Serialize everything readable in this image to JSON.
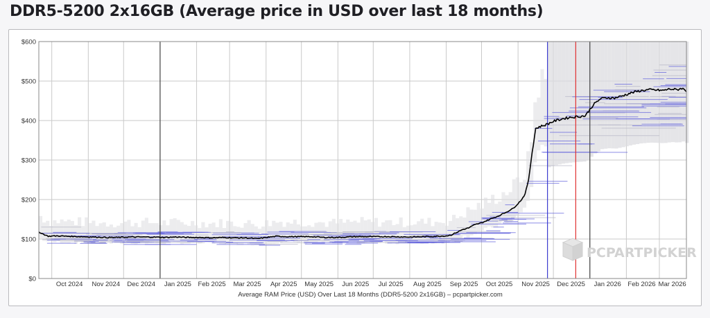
{
  "page": {
    "title": "DDR5-5200 2x16GB (Average price in USD over last 18 months)"
  },
  "watermark": {
    "text": "PCPARTPICKER",
    "icon": "pcpartpicker-box-logo"
  },
  "colors": {
    "line": "#000000",
    "band": "#dcdce0",
    "listing": "#6666dd",
    "vline_blue": "#3b3bd0",
    "vline_red": "#e03030",
    "vline_dark": "#444444",
    "grid": "#c9c9c9"
  },
  "chart_data": {
    "type": "line",
    "title": "DDR5-5200 2x16GB (Average price in USD over last 18 months)",
    "xlabel": "Average RAM Price (USD) Over Last 18 Months (DDR5-5200 2x16GB) – pcpartpicker.com",
    "ylabel": "",
    "grid": true,
    "legend": "none",
    "ylim": [
      0,
      600
    ],
    "yticks": [
      0,
      100,
      200,
      300,
      400,
      500,
      600
    ],
    "ytick_labels": [
      "$0",
      "$100",
      "$200",
      "$300",
      "$400",
      "$500",
      "$600"
    ],
    "xlim": [
      "2024-09-20",
      "2026-03-24"
    ],
    "x_month_lines": [
      "2024-10-01",
      "2024-11-01",
      "2024-12-01",
      "2025-01-01",
      "2025-02-01",
      "2025-03-01",
      "2025-04-01",
      "2025-05-01",
      "2025-06-01",
      "2025-07-01",
      "2025-08-01",
      "2025-09-01",
      "2025-10-01",
      "2025-11-01",
      "2025-12-01",
      "2026-01-01",
      "2026-02-01",
      "2026-03-01"
    ],
    "xticks": [
      {
        "x": "2024-10-16",
        "label": "Oct 2024"
      },
      {
        "x": "2024-11-16",
        "label": "Nov 2024"
      },
      {
        "x": "2024-12-16",
        "label": "Dec 2024"
      },
      {
        "x": "2025-01-16",
        "label": "Jan 2025"
      },
      {
        "x": "2025-02-14",
        "label": "Feb 2025"
      },
      {
        "x": "2025-03-16",
        "label": "Mar 2025"
      },
      {
        "x": "2025-04-16",
        "label": "Apr 2025"
      },
      {
        "x": "2025-05-16",
        "label": "May 2025"
      },
      {
        "x": "2025-06-16",
        "label": "Jun 2025"
      },
      {
        "x": "2025-07-16",
        "label": "Jul 2025"
      },
      {
        "x": "2025-08-16",
        "label": "Aug 2025"
      },
      {
        "x": "2025-09-16",
        "label": "Sep 2025"
      },
      {
        "x": "2025-10-16",
        "label": "Oct 2025"
      },
      {
        "x": "2025-11-16",
        "label": "Nov 2025"
      },
      {
        "x": "2025-12-16",
        "label": "Dec 2025"
      },
      {
        "x": "2026-01-16",
        "label": "Jan 2026"
      },
      {
        "x": "2026-02-14",
        "label": "Feb 2026"
      },
      {
        "x": "2026-03-12",
        "label": "Mar 2026"
      }
    ],
    "vertical_markers": [
      {
        "x": "2025-01-01",
        "color": "#444444"
      },
      {
        "x": "2025-11-26",
        "color": "#3b3bd0"
      },
      {
        "x": "2025-12-20",
        "color": "#e03030"
      },
      {
        "x": "2026-01-01",
        "color": "#444444"
      }
    ],
    "series": [
      {
        "x": [
          "2024-09-20",
          "2024-09-24",
          "2024-09-28",
          "2024-10-05",
          "2024-10-15",
          "2024-10-25",
          "2024-11-05",
          "2024-11-15",
          "2024-11-25",
          "2024-12-05",
          "2024-12-15",
          "2024-12-25",
          "2025-01-05",
          "2025-01-15",
          "2025-01-25",
          "2025-02-05",
          "2025-02-15",
          "2025-02-25",
          "2025-03-05",
          "2025-03-15",
          "2025-03-25",
          "2025-04-01",
          "2025-04-10",
          "2025-04-20",
          "2025-05-01",
          "2025-05-10",
          "2025-05-20",
          "2025-06-01",
          "2025-06-15",
          "2025-07-01",
          "2025-07-15",
          "2025-08-01",
          "2025-08-15",
          "2025-08-25",
          "2025-09-01",
          "2025-09-05",
          "2025-09-10",
          "2025-09-15",
          "2025-09-20",
          "2025-09-25",
          "2025-10-01",
          "2025-10-08",
          "2025-10-15",
          "2025-10-22",
          "2025-10-28",
          "2025-11-01",
          "2025-11-04",
          "2025-11-07",
          "2025-11-10",
          "2025-11-13",
          "2025-11-16",
          "2025-11-20",
          "2025-11-25",
          "2025-12-01",
          "2025-12-08",
          "2025-12-15",
          "2025-12-22",
          "2025-12-28",
          "2026-01-04",
          "2026-01-10",
          "2026-01-16",
          "2026-01-22",
          "2026-01-28",
          "2026-02-05",
          "2026-02-12",
          "2026-02-20",
          "2026-02-27",
          "2026-03-04",
          "2026-03-10",
          "2026-03-16",
          "2026-03-20",
          "2026-03-24"
        ],
        "y": [
          118,
          112,
          107,
          108,
          107,
          106,
          105,
          104,
          104,
          105,
          105,
          105,
          104,
          105,
          104,
          104,
          103,
          104,
          103,
          103,
          101,
          104,
          107,
          106,
          106,
          106,
          104,
          104,
          106,
          106,
          106,
          105,
          106,
          107,
          108,
          110,
          117,
          124,
          128,
          136,
          141,
          150,
          158,
          168,
          178,
          190,
          200,
          214,
          250,
          320,
          380,
          385,
          390,
          398,
          404,
          408,
          410,
          412,
          440,
          455,
          458,
          457,
          462,
          470,
          475,
          478,
          477,
          476,
          480,
          478,
          482,
          475
        ]
      }
    ]
  }
}
